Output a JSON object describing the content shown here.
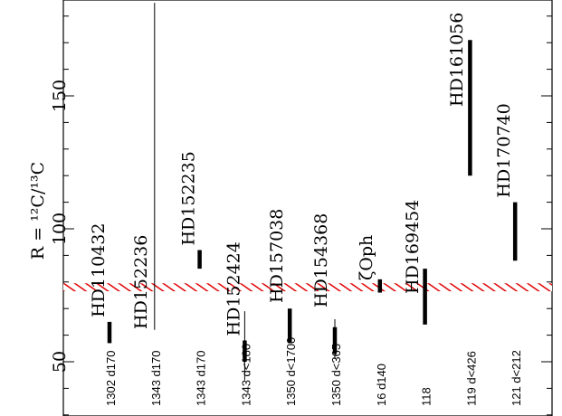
{
  "chart_data": {
    "type": "scatter",
    "title": "",
    "ylabel": "R = ¹²C/¹³C",
    "xlabel": "",
    "ylim": [
      30,
      185
    ],
    "y_ticks": [
      50,
      100,
      150
    ],
    "grid": false,
    "reference_band": {
      "min": 76.5,
      "max": 79.5,
      "style": "hatched",
      "color": "#e00000"
    },
    "stars": [
      {
        "name": "HD110432",
        "x": 1,
        "value_low": 57,
        "value_high": 65,
        "label_bottom": "1302 d170"
      },
      {
        "name": "HD152236",
        "x": 2,
        "value_low": 62,
        "value_high": 185,
        "label_bottom": "1343 d170"
      },
      {
        "name": "HD152235",
        "x": 3,
        "value_low": 85,
        "value_high": 92,
        "label_bottom": "1343 d170"
      },
      {
        "name": "HD152424",
        "x": 4,
        "value_low": 50,
        "value_high": 58,
        "range_low": 43,
        "range_high": 69,
        "label_bottom": "1343 d<180"
      },
      {
        "name": "HD157038",
        "x": 5,
        "value_low": 57,
        "value_high": 70,
        "label_bottom": "1350 d<1700"
      },
      {
        "name": "HD154368",
        "x": 6,
        "value_low": 53,
        "value_high": 63,
        "range_low": 51,
        "range_high": 66,
        "label_bottom": "1350 d<365"
      },
      {
        "name": "ζOph",
        "x": 7,
        "value_low": 76,
        "value_high": 81,
        "label_bottom": "16 d140"
      },
      {
        "name": "HD169454",
        "x": 8,
        "value_low": 64,
        "value_high": 85,
        "label_bottom": "118"
      },
      {
        "name": "HD161056",
        "x": 9,
        "value_low": 120,
        "value_high": 171,
        "label_bottom": "119 d<426"
      },
      {
        "name": "HD170740",
        "x": 10,
        "value_low": 88,
        "value_high": 110,
        "label_bottom": "121 d<212"
      }
    ]
  }
}
